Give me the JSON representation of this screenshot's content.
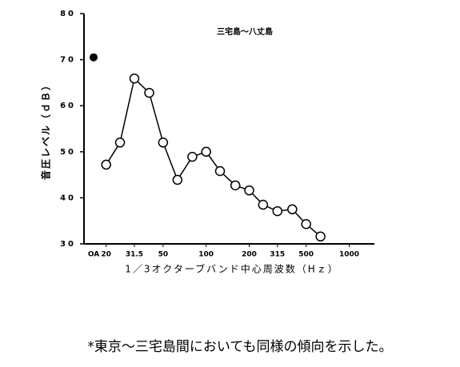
{
  "chart_data": {
    "type": "line",
    "title": "三宅島～八丈島",
    "xlabel": "1／3オクターブバンド中心周波数（Hｚ）",
    "ylabel": "音圧レベル（ｄＢ）",
    "x_scale": "log",
    "x": [
      20,
      25,
      31.5,
      40,
      50,
      63,
      80,
      100,
      125,
      160,
      200,
      250,
      315,
      400,
      500,
      630
    ],
    "series": [
      {
        "color": "#000000",
        "values": [
          47.2,
          52,
          65.9,
          62.8,
          52,
          43.9,
          48.9,
          50,
          45.8,
          42.7,
          41.6,
          38.5,
          37.1,
          37.5,
          34.3,
          31.6
        ]
      }
    ],
    "overall": {
      "label": "OA",
      "value": 70.5
    },
    "xlim": [
      14,
      1500
    ],
    "xticks": [
      20,
      31.5,
      50,
      100,
      200,
      315,
      500,
      1000
    ],
    "ylim": [
      30,
      80
    ],
    "yticks": [
      30,
      40,
      50,
      60,
      70,
      80
    ]
  },
  "caption": "*東京～三宅島間においても同様の傾向を示した。"
}
